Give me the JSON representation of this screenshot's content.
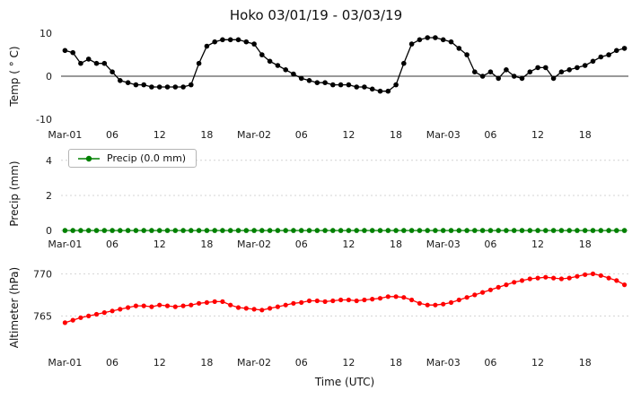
{
  "figure": {
    "title": "Hoko 03/01/19 - 03/03/19",
    "xlabel": "Time (UTC)",
    "legend": {
      "label": "Precip (0.0 mm)",
      "color": "#008000"
    }
  },
  "chart_data": [
    {
      "type": "line",
      "title": "Hoko 03/01/19 - 03/03/19",
      "ylabel": "Temp ( ° C)",
      "ylim": [
        -11.5,
        11.5
      ],
      "yticks": [
        -10,
        0,
        10
      ],
      "yticklabels": [
        "-10",
        "0",
        "10"
      ],
      "grid_y": [],
      "zero_line": true,
      "xticks": [
        0,
        6,
        12,
        18,
        24,
        30,
        36,
        42,
        48,
        54,
        60,
        66
      ],
      "xticklabels": [
        "Mar-01",
        "06",
        "12",
        "18",
        "Mar-02",
        "06",
        "12",
        "18",
        "Mar-03",
        "06",
        "12",
        "18"
      ],
      "series": [
        {
          "name": "Temp",
          "color": "#000000",
          "values": [
            6,
            5.5,
            3,
            4,
            3,
            3,
            1,
            -1,
            -1.5,
            -2,
            -2,
            -2.5,
            -2.5,
            -2.5,
            -2.5,
            -2.5,
            -2,
            3,
            7,
            8,
            8.5,
            8.5,
            8.5,
            8,
            7.5,
            5,
            3.5,
            2.5,
            1.5,
            0.5,
            -0.5,
            -1,
            -1.5,
            -1.5,
            -2,
            -2,
            -2,
            -2.5,
            -2.5,
            -3,
            -3.5,
            -3.5,
            -2,
            3,
            7.5,
            8.5,
            9,
            9,
            8.5,
            8,
            6.5,
            5,
            1,
            0,
            1,
            -0.5,
            1.5,
            0,
            -0.5,
            1,
            2,
            2,
            -0.5,
            1,
            1.5,
            2,
            2.5,
            3.5,
            4.5,
            5,
            6,
            6.5
          ]
        }
      ]
    },
    {
      "type": "line",
      "ylabel": "Precip (mm)",
      "legend_label": "Precip (0.0 mm)",
      "ylim": [
        -0.25,
        4.45
      ],
      "yticks": [
        0,
        2,
        4
      ],
      "yticklabels": [
        "0",
        "2",
        "4"
      ],
      "grid_y": [
        0,
        2,
        4
      ],
      "zero_line": false,
      "xticks": [
        0,
        6,
        12,
        18,
        24,
        30,
        36,
        42,
        48,
        54,
        60,
        66
      ],
      "xticklabels": [
        "Mar-01",
        "06",
        "12",
        "18",
        "Mar-02",
        "06",
        "12",
        "18",
        "Mar-03",
        "06",
        "12",
        "18"
      ],
      "series": [
        {
          "name": "Precip",
          "color": "#008000",
          "values": [
            0,
            0,
            0,
            0,
            0,
            0,
            0,
            0,
            0,
            0,
            0,
            0,
            0,
            0,
            0,
            0,
            0,
            0,
            0,
            0,
            0,
            0,
            0,
            0,
            0,
            0,
            0,
            0,
            0,
            0,
            0,
            0,
            0,
            0,
            0,
            0,
            0,
            0,
            0,
            0,
            0,
            0,
            0,
            0,
            0,
            0,
            0,
            0,
            0,
            0,
            0,
            0,
            0,
            0,
            0,
            0,
            0,
            0,
            0,
            0,
            0,
            0,
            0,
            0,
            0,
            0,
            0,
            0,
            0,
            0,
            0,
            0
          ]
        }
      ]
    },
    {
      "type": "line",
      "ylabel": "Altimeter (hPa)",
      "xlabel": "Time (UTC)",
      "ylim": [
        761,
        771
      ],
      "yticks": [
        765,
        770
      ],
      "yticklabels": [
        "765",
        "770"
      ],
      "grid_y": [
        765,
        770
      ],
      "zero_line": false,
      "xticks": [
        0,
        6,
        12,
        18,
        24,
        30,
        36,
        42,
        48,
        54,
        60,
        66
      ],
      "xticklabels": [
        "Mar-01",
        "06",
        "12",
        "18",
        "Mar-02",
        "06",
        "12",
        "18",
        "Mar-03",
        "06",
        "12",
        "18"
      ],
      "series": [
        {
          "name": "Altimeter",
          "color": "#ff0000",
          "values": [
            764.2,
            764.5,
            764.8,
            765.0,
            765.2,
            765.4,
            765.6,
            765.8,
            766.0,
            766.2,
            766.2,
            766.1,
            766.3,
            766.2,
            766.1,
            766.2,
            766.3,
            766.5,
            766.6,
            766.7,
            766.7,
            766.3,
            766.0,
            765.9,
            765.8,
            765.7,
            765.9,
            766.1,
            766.3,
            766.5,
            766.6,
            766.8,
            766.8,
            766.7,
            766.8,
            766.9,
            766.9,
            766.8,
            766.9,
            767.0,
            767.1,
            767.3,
            767.3,
            767.2,
            766.9,
            766.5,
            766.3,
            766.3,
            766.4,
            766.6,
            766.9,
            767.2,
            767.5,
            767.8,
            768.1,
            768.4,
            768.7,
            769.0,
            769.2,
            769.4,
            769.5,
            769.6,
            769.5,
            769.4,
            769.5,
            769.7,
            769.9,
            770.0,
            769.8,
            769.5,
            769.2,
            768.7
          ]
        }
      ]
    }
  ]
}
